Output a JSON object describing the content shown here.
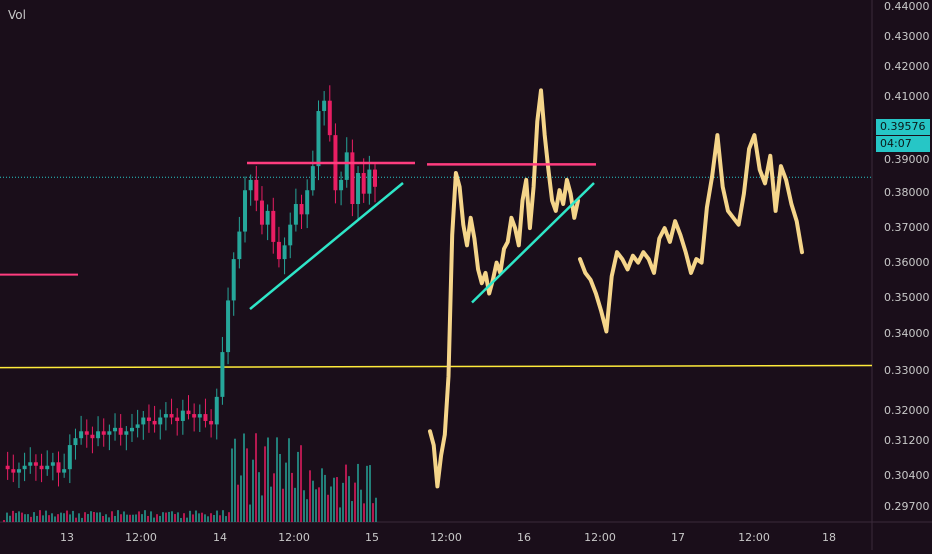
{
  "volume_label": "Vol",
  "colors": {
    "background": "#1a0e1a",
    "up": "#26a69a",
    "down": "#e91e63",
    "yellow_line": "#ffeb3b",
    "sketch": "#f5d58a",
    "trend_cyan": "#2ee6c8",
    "resistance": "#ff3d7f",
    "last_price": "#26c6c6"
  },
  "current_price": {
    "value": "0.39576",
    "countdown": "04:07"
  },
  "chart_data": {
    "type": "line",
    "y_ticks": [
      "0.44000",
      "0.43000",
      "0.42000",
      "0.41000",
      "0.40000",
      "0.39000",
      "0.38000",
      "0.37000",
      "0.36000",
      "0.35000",
      "0.34000",
      "0.33000",
      "0.32000",
      "0.31200",
      "0.30400",
      "0.29700"
    ],
    "x_ticks": [
      "13",
      "12:00",
      "14",
      "12:00",
      "15",
      "12:00",
      "16",
      "12:00",
      "17",
      "12:00",
      "18"
    ],
    "ylim": [
      0.2945,
      0.4455
    ],
    "candles_price": [
      0.312,
      0.311,
      0.31,
      0.311,
      0.312,
      0.313,
      0.312,
      0.311,
      0.312,
      0.313,
      0.31,
      0.311,
      0.318,
      0.32,
      0.322,
      0.321,
      0.32,
      0.322,
      0.321,
      0.322,
      0.323,
      0.321,
      0.322,
      0.323,
      0.324,
      0.326,
      0.325,
      0.324,
      0.326,
      0.327,
      0.326,
      0.325,
      0.328,
      0.327,
      0.326,
      0.327,
      0.325,
      0.324,
      0.332,
      0.345,
      0.36,
      0.372,
      0.38,
      0.392,
      0.395,
      0.389,
      0.382,
      0.386,
      0.377,
      0.372,
      0.376,
      0.382,
      0.388,
      0.385,
      0.392,
      0.399,
      0.415,
      0.418,
      0.408,
      0.392,
      0.395,
      0.403,
      0.388,
      0.397,
      0.391,
      0.398,
      0.393
    ],
    "sketch_series_1": [
      0.322,
      0.318,
      0.306,
      0.315,
      0.321,
      0.338,
      0.379,
      0.397,
      0.393,
      0.382,
      0.376,
      0.384,
      0.378,
      0.369,
      0.365,
      0.368,
      0.362,
      0.366,
      0.371,
      0.368,
      0.375,
      0.377,
      0.384,
      0.381,
      0.376,
      0.389,
      0.395,
      0.381,
      0.393,
      0.412,
      0.421,
      0.408,
      0.398,
      0.389,
      0.386,
      0.392,
      0.388,
      0.395,
      0.391,
      0.384,
      0.389
    ],
    "sketch_series_2": [
      0.372,
      0.368,
      0.366,
      0.362,
      0.357,
      0.351,
      0.367,
      0.374,
      0.372,
      0.369,
      0.373,
      0.371,
      0.374,
      0.372,
      0.368,
      0.378,
      0.381,
      0.377,
      0.383,
      0.379,
      0.374,
      0.368,
      0.372,
      0.371,
      0.387,
      0.396,
      0.408,
      0.393,
      0.386,
      0.384,
      0.382,
      0.391,
      0.404,
      0.408,
      0.398,
      0.394,
      0.402,
      0.386,
      0.399,
      0.395,
      0.388,
      0.383,
      0.374
    ],
    "yellow_line": [
      0.3405,
      0.3411
    ],
    "resistance_1": 0.3999,
    "resistance_2": 0.3995,
    "magenta_left": 0.3675,
    "trend_1": [
      0.3575,
      0.3941
    ],
    "trend_2": [
      0.3594,
      0.3941
    ]
  }
}
